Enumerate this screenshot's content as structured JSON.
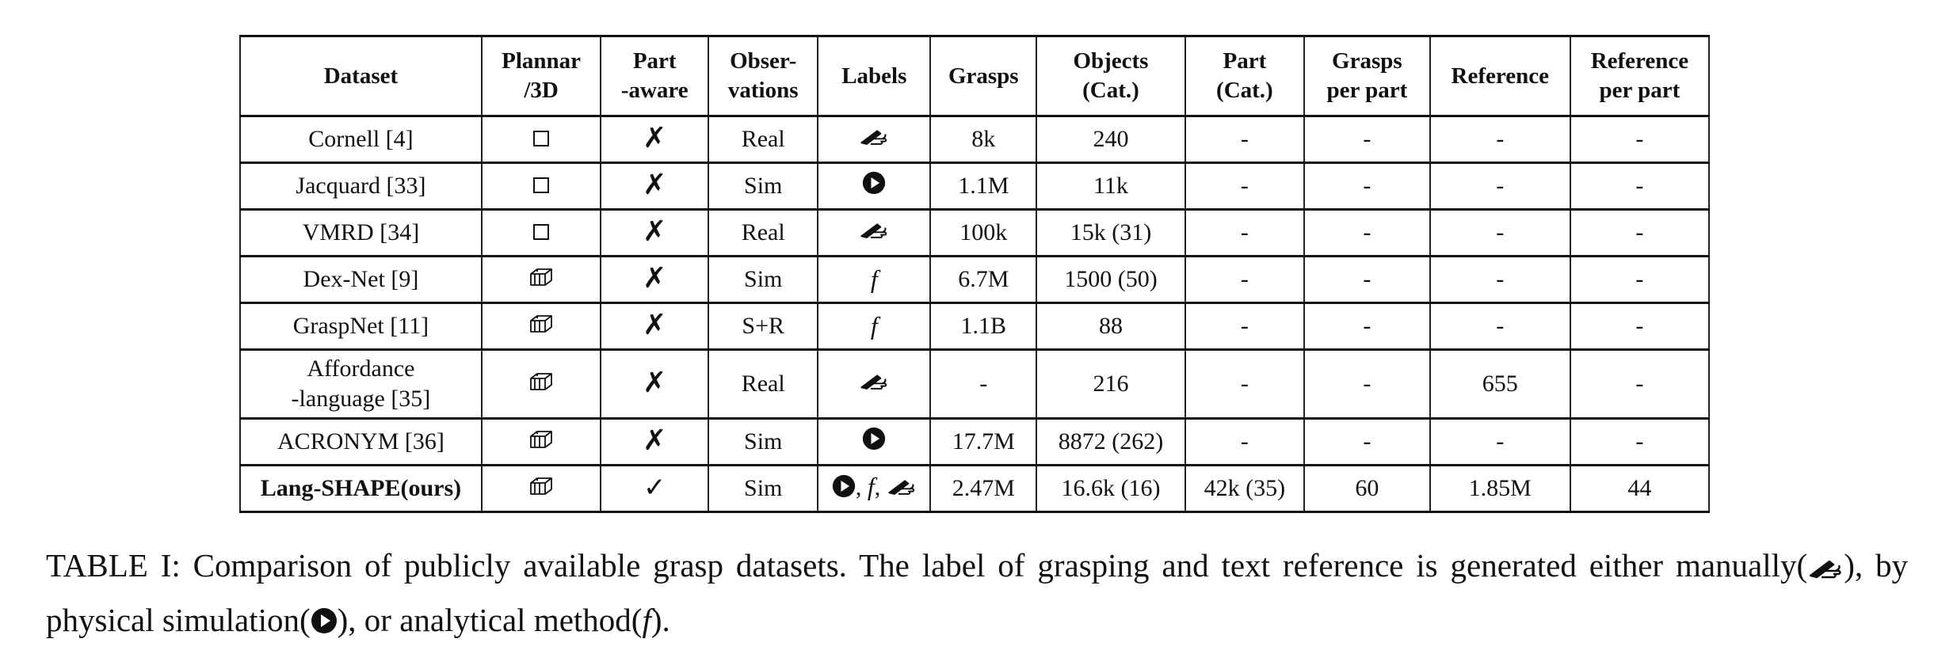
{
  "table": {
    "headers": [
      {
        "line1": "Dataset",
        "line2": ""
      },
      {
        "line1": "Plannar",
        "line2": "/3D"
      },
      {
        "line1": "Part",
        "line2": "-aware"
      },
      {
        "line1": "Obser-",
        "line2": "vations"
      },
      {
        "line1": "Labels",
        "line2": ""
      },
      {
        "line1": "Grasps",
        "line2": ""
      },
      {
        "line1": "Objects",
        "line2": "(Cat.)"
      },
      {
        "line1": "Part",
        "line2": "(Cat.)"
      },
      {
        "line1": "Grasps",
        "line2": "per part"
      },
      {
        "line1": "Reference",
        "line2": ""
      },
      {
        "line1": "Reference",
        "line2": "per part"
      }
    ],
    "rows": [
      {
        "dataset": "Cornell [4]",
        "dataset_line2": "",
        "dim": "planar",
        "part_aware": "no",
        "obs": "Real",
        "labels": [
          "manual"
        ],
        "grasps": "8k",
        "objects": "240",
        "part": "-",
        "grasps_per_part": "-",
        "reference": "-",
        "ref_per_part": "-"
      },
      {
        "dataset": "Jacquard [33]",
        "dataset_line2": "",
        "dim": "planar",
        "part_aware": "no",
        "obs": "Sim",
        "labels": [
          "sim"
        ],
        "grasps": "1.1M",
        "objects": "11k",
        "part": "-",
        "grasps_per_part": "-",
        "reference": "-",
        "ref_per_part": "-"
      },
      {
        "dataset": "VMRD [34]",
        "dataset_line2": "",
        "dim": "planar",
        "part_aware": "no",
        "obs": "Real",
        "labels": [
          "manual"
        ],
        "grasps": "100k",
        "objects": "15k (31)",
        "part": "-",
        "grasps_per_part": "-",
        "reference": "-",
        "ref_per_part": "-"
      },
      {
        "dataset": "Dex-Net [9]",
        "dataset_line2": "",
        "dim": "3d",
        "part_aware": "no",
        "obs": "Sim",
        "labels": [
          "analytic"
        ],
        "grasps": "6.7M",
        "objects": "1500 (50)",
        "part": "-",
        "grasps_per_part": "-",
        "reference": "-",
        "ref_per_part": "-"
      },
      {
        "dataset": "GraspNet [11]",
        "dataset_line2": "",
        "dim": "3d",
        "part_aware": "no",
        "obs": "S+R",
        "labels": [
          "analytic"
        ],
        "grasps": "1.1B",
        "objects": "88",
        "part": "-",
        "grasps_per_part": "-",
        "reference": "-",
        "ref_per_part": "-"
      },
      {
        "dataset": "Affordance",
        "dataset_line2": "-language [35]",
        "dim": "3d",
        "part_aware": "no",
        "obs": "Real",
        "labels": [
          "manual"
        ],
        "grasps": "-",
        "objects": "216",
        "part": "-",
        "grasps_per_part": "-",
        "reference": "655",
        "ref_per_part": "-"
      },
      {
        "dataset": "ACRONYM [36]",
        "dataset_line2": "",
        "dim": "3d",
        "part_aware": "no",
        "obs": "Sim",
        "labels": [
          "sim"
        ],
        "grasps": "17.7M",
        "objects": "8872 (262)",
        "part": "-",
        "grasps_per_part": "-",
        "reference": "-",
        "ref_per_part": "-"
      },
      {
        "dataset": "Lang-SHAPE(ours)",
        "dataset_line2": "",
        "dim": "3d",
        "part_aware": "yes",
        "obs": "Sim",
        "labels": [
          "sim",
          "analytic",
          "manual"
        ],
        "grasps": "2.47M",
        "objects": "16.6k (16)",
        "part": "42k (35)",
        "grasps_per_part": "60",
        "reference": "1.85M",
        "ref_per_part": "44"
      }
    ],
    "glyphs": {
      "no": "✗",
      "yes": "✓",
      "analytic": "f",
      "separator": ","
    },
    "icon_names": {
      "planar": "square-icon",
      "3d": "cube-icon",
      "manual": "writing-hand-icon",
      "sim": "play-circle-icon",
      "analytic": "f-function-icon"
    }
  },
  "caption": {
    "part1": "TABLE I: Comparison of publicly available grasp datasets. The label of grasping and text reference is generated either manually(",
    "part2": "), by physical simulation(",
    "part3": "), or analytical method(",
    "f": "f",
    "part4": ")."
  }
}
